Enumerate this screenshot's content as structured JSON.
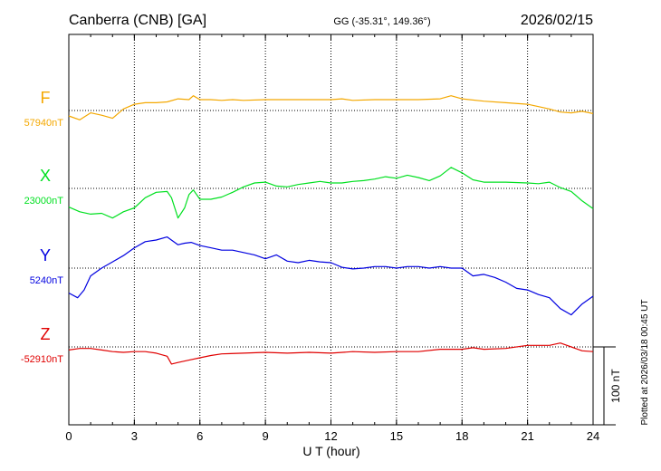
{
  "chart_data": {
    "type": "line",
    "title": "Canberra (CNB)  [GA]",
    "subtitle": "GG (-35.31°, 149.36°)",
    "date": "2026/02/15",
    "xlabel": "U T (hour)",
    "xlim": [
      0,
      24
    ],
    "xticks": [
      "0",
      "3",
      "6",
      "9",
      "12",
      "15",
      "18",
      "21",
      "24"
    ],
    "xtick_values": [
      0,
      3,
      6,
      9,
      12,
      15,
      18,
      21,
      24
    ],
    "grid": true,
    "scale_bar_label": "100 nT",
    "scale_bar_nT": 100,
    "footer_note": "Plotted at 2026/03/18 00:45 UT",
    "series": [
      {
        "name": "F",
        "baseline_label": "57940nT",
        "baseline_nT": 57940,
        "color": "#f4a800",
        "points": [
          [
            0,
            -7
          ],
          [
            0.5,
            -12
          ],
          [
            1,
            -3
          ],
          [
            1.5,
            -6
          ],
          [
            2,
            -10
          ],
          [
            2.5,
            2
          ],
          [
            3,
            8
          ],
          [
            3.5,
            10
          ],
          [
            4,
            10
          ],
          [
            4.5,
            11
          ],
          [
            5,
            15
          ],
          [
            5.5,
            14
          ],
          [
            5.7,
            19
          ],
          [
            6,
            14
          ],
          [
            6.5,
            14
          ],
          [
            7,
            13
          ],
          [
            7.5,
            14
          ],
          [
            8,
            13
          ],
          [
            9,
            14
          ],
          [
            10,
            14
          ],
          [
            11,
            14
          ],
          [
            12,
            14
          ],
          [
            12.5,
            15
          ],
          [
            13,
            13
          ],
          [
            14,
            14
          ],
          [
            15,
            14
          ],
          [
            16,
            14
          ],
          [
            17,
            15
          ],
          [
            17.5,
            19
          ],
          [
            18,
            15
          ],
          [
            19,
            12
          ],
          [
            20,
            10
          ],
          [
            21,
            8
          ],
          [
            21.5,
            5
          ],
          [
            22,
            2
          ],
          [
            22.5,
            -2
          ],
          [
            23,
            -3
          ],
          [
            23.5,
            -1
          ],
          [
            24,
            -4
          ]
        ]
      },
      {
        "name": "X",
        "baseline_label": "23000nT",
        "baseline_nT": 23000,
        "color": "#00e020",
        "points": [
          [
            0,
            -24
          ],
          [
            0.5,
            -30
          ],
          [
            1,
            -33
          ],
          [
            1.5,
            -32
          ],
          [
            2,
            -38
          ],
          [
            2.5,
            -30
          ],
          [
            3,
            -25
          ],
          [
            3.5,
            -12
          ],
          [
            4,
            -5
          ],
          [
            4.5,
            -4
          ],
          [
            4.7,
            -12
          ],
          [
            5,
            -38
          ],
          [
            5.3,
            -25
          ],
          [
            5.5,
            -8
          ],
          [
            5.7,
            -2
          ],
          [
            6,
            -14
          ],
          [
            6.5,
            -14
          ],
          [
            7,
            -11
          ],
          [
            7.5,
            -5
          ],
          [
            8,
            2
          ],
          [
            8.5,
            7
          ],
          [
            9,
            8
          ],
          [
            9.5,
            3
          ],
          [
            10,
            2
          ],
          [
            10.5,
            5
          ],
          [
            11,
            7
          ],
          [
            11.5,
            9
          ],
          [
            12,
            7
          ],
          [
            12.5,
            7
          ],
          [
            13,
            9
          ],
          [
            13.5,
            10
          ],
          [
            14,
            12
          ],
          [
            14.5,
            15
          ],
          [
            15,
            13
          ],
          [
            15.5,
            17
          ],
          [
            16,
            14
          ],
          [
            16.5,
            10
          ],
          [
            17,
            16
          ],
          [
            17.5,
            27
          ],
          [
            18,
            20
          ],
          [
            18.5,
            11
          ],
          [
            19,
            8
          ],
          [
            20,
            8
          ],
          [
            21,
            7
          ],
          [
            21.5,
            6
          ],
          [
            22,
            8
          ],
          [
            22.5,
            1
          ],
          [
            23,
            -4
          ],
          [
            23.5,
            -16
          ],
          [
            24,
            -26
          ]
        ]
      },
      {
        "name": "Y",
        "baseline_label": "5240nT",
        "baseline_nT": 5240,
        "color": "#0000e0",
        "points": [
          [
            0,
            -32
          ],
          [
            0.4,
            -38
          ],
          [
            0.7,
            -28
          ],
          [
            1,
            -10
          ],
          [
            1.5,
            0
          ],
          [
            2,
            8
          ],
          [
            2.5,
            16
          ],
          [
            3,
            26
          ],
          [
            3.5,
            34
          ],
          [
            4,
            36
          ],
          [
            4.5,
            40
          ],
          [
            5,
            30
          ],
          [
            5.3,
            32
          ],
          [
            5.6,
            33
          ],
          [
            6,
            29
          ],
          [
            6.5,
            26
          ],
          [
            7,
            23
          ],
          [
            7.5,
            23
          ],
          [
            8,
            20
          ],
          [
            8.5,
            17
          ],
          [
            9,
            12
          ],
          [
            9.5,
            17
          ],
          [
            10,
            9
          ],
          [
            10.5,
            7
          ],
          [
            11,
            10
          ],
          [
            11.5,
            8
          ],
          [
            12,
            7
          ],
          [
            12.5,
            1
          ],
          [
            13,
            -1
          ],
          [
            13.5,
            0
          ],
          [
            14,
            2
          ],
          [
            14.5,
            2
          ],
          [
            15,
            0
          ],
          [
            15.5,
            2
          ],
          [
            16,
            2
          ],
          [
            16.5,
            0
          ],
          [
            17,
            2
          ],
          [
            17.5,
            0
          ],
          [
            18,
            0
          ],
          [
            18.5,
            -10
          ],
          [
            19,
            -8
          ],
          [
            19.5,
            -12
          ],
          [
            20,
            -18
          ],
          [
            20.5,
            -26
          ],
          [
            21,
            -28
          ],
          [
            21.5,
            -34
          ],
          [
            22,
            -38
          ],
          [
            22.5,
            -52
          ],
          [
            23,
            -60
          ],
          [
            23.5,
            -46
          ],
          [
            24,
            -36
          ]
        ]
      },
      {
        "name": "Z",
        "baseline_label": "-52910nT",
        "baseline_nT": -52910,
        "color": "#e00000",
        "points": [
          [
            0,
            -4
          ],
          [
            0.5,
            -2
          ],
          [
            1,
            -2
          ],
          [
            1.5,
            -4
          ],
          [
            2,
            -6
          ],
          [
            2.5,
            -7
          ],
          [
            3,
            -6
          ],
          [
            3.5,
            -6
          ],
          [
            4,
            -8
          ],
          [
            4.5,
            -12
          ],
          [
            4.7,
            -22
          ],
          [
            5,
            -20
          ],
          [
            5.5,
            -17
          ],
          [
            6,
            -14
          ],
          [
            6.5,
            -11
          ],
          [
            7,
            -9
          ],
          [
            8,
            -8
          ],
          [
            9,
            -7
          ],
          [
            10,
            -8
          ],
          [
            11,
            -7
          ],
          [
            12,
            -8
          ],
          [
            13,
            -6
          ],
          [
            14,
            -7
          ],
          [
            15,
            -6
          ],
          [
            16,
            -6
          ],
          [
            17,
            -3
          ],
          [
            18,
            -3
          ],
          [
            18.5,
            -1
          ],
          [
            19,
            -3
          ],
          [
            20,
            -2
          ],
          [
            21,
            2
          ],
          [
            22,
            2
          ],
          [
            22.5,
            5
          ],
          [
            23,
            0
          ],
          [
            23.5,
            -5
          ],
          [
            24,
            -6
          ]
        ]
      }
    ]
  }
}
